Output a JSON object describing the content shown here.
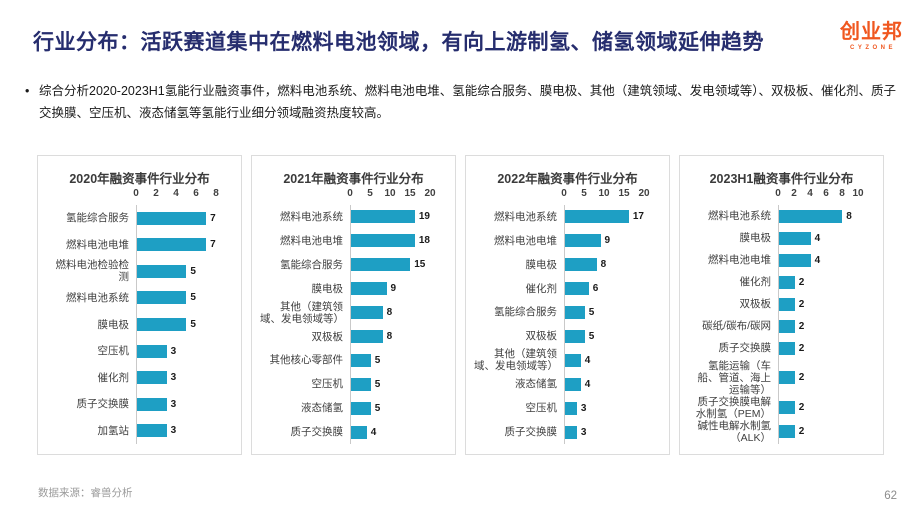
{
  "header": {
    "title": "行业分布：活跃赛道集中在燃料电池领域，有向上游制氢、储氢领域延伸趋势",
    "logo_text": "创业邦",
    "logo_subtext": "CYZONE"
  },
  "summary": {
    "bullet_marker": "•",
    "text": "综合分析2020-2023H1氢能行业融资事件，燃料电池系统、燃料电池电堆、氢能综合服务、膜电极、其他（建筑领域、发电领域等）、双极板、催化剂、质子交换膜、空压机、液态储氢等氢能行业细分领域融资热度较高。"
  },
  "colors": {
    "bar": "#1E9FC4",
    "title_navy": "#262D6E",
    "logo_orange": "#F0571F"
  },
  "chart_data": [
    {
      "type": "bar",
      "orientation": "horizontal",
      "title": "2020年融资事件行业分布",
      "xlim": [
        0,
        8
      ],
      "ticks": [
        0,
        2,
        4,
        6,
        8
      ],
      "categories": [
        "氢能综合服务",
        "燃料电池电堆",
        "燃料电池检验检测",
        "燃料电池系统",
        "膜电极",
        "空压机",
        "催化剂",
        "质子交换膜",
        "加氢站"
      ],
      "values": [
        7,
        7,
        5,
        5,
        5,
        3,
        3,
        3,
        3
      ]
    },
    {
      "type": "bar",
      "orientation": "horizontal",
      "title": "2021年融资事件行业分布",
      "xlim": [
        0,
        20
      ],
      "ticks": [
        0,
        5,
        10,
        15,
        20
      ],
      "categories": [
        "燃料电池系统",
        "燃料电池电堆",
        "氢能综合服务",
        "膜电极",
        "其他（建筑领域、发电领域等）",
        "双极板",
        "其他核心零部件",
        "空压机",
        "液态储氢",
        "质子交换膜"
      ],
      "values": [
        19,
        18,
        15,
        9,
        8,
        8,
        5,
        5,
        5,
        4
      ]
    },
    {
      "type": "bar",
      "orientation": "horizontal",
      "title": "2022年融资事件行业分布",
      "xlim": [
        0,
        20
      ],
      "ticks": [
        0,
        5,
        10,
        15,
        20
      ],
      "categories": [
        "燃料电池系统",
        "燃料电池电堆",
        "膜电极",
        "催化剂",
        "氢能综合服务",
        "双极板",
        "其他（建筑领域、发电领域等）",
        "液态储氢",
        "空压机",
        "质子交换膜"
      ],
      "values": [
        17,
        9,
        8,
        6,
        5,
        5,
        4,
        4,
        3,
        3
      ]
    },
    {
      "type": "bar",
      "orientation": "horizontal",
      "title": "2023H1融资事件行业分布",
      "xlim": [
        0,
        10
      ],
      "ticks": [
        0,
        2,
        4,
        6,
        8,
        10
      ],
      "categories": [
        "燃料电池系统",
        "膜电极",
        "燃料电池电堆",
        "催化剂",
        "双极板",
        "碳纸/碳布/碳网",
        "质子交换膜",
        "氢能运输（车船、管道、海上运输等）",
        "质子交换膜电解水制氢（PEM）",
        "碱性电解水制氢（ALK）"
      ],
      "values": [
        8,
        4,
        4,
        2,
        2,
        2,
        2,
        2,
        2,
        2
      ]
    }
  ],
  "footer": {
    "source": "数据来源：睿兽分析",
    "page_number": "62"
  }
}
